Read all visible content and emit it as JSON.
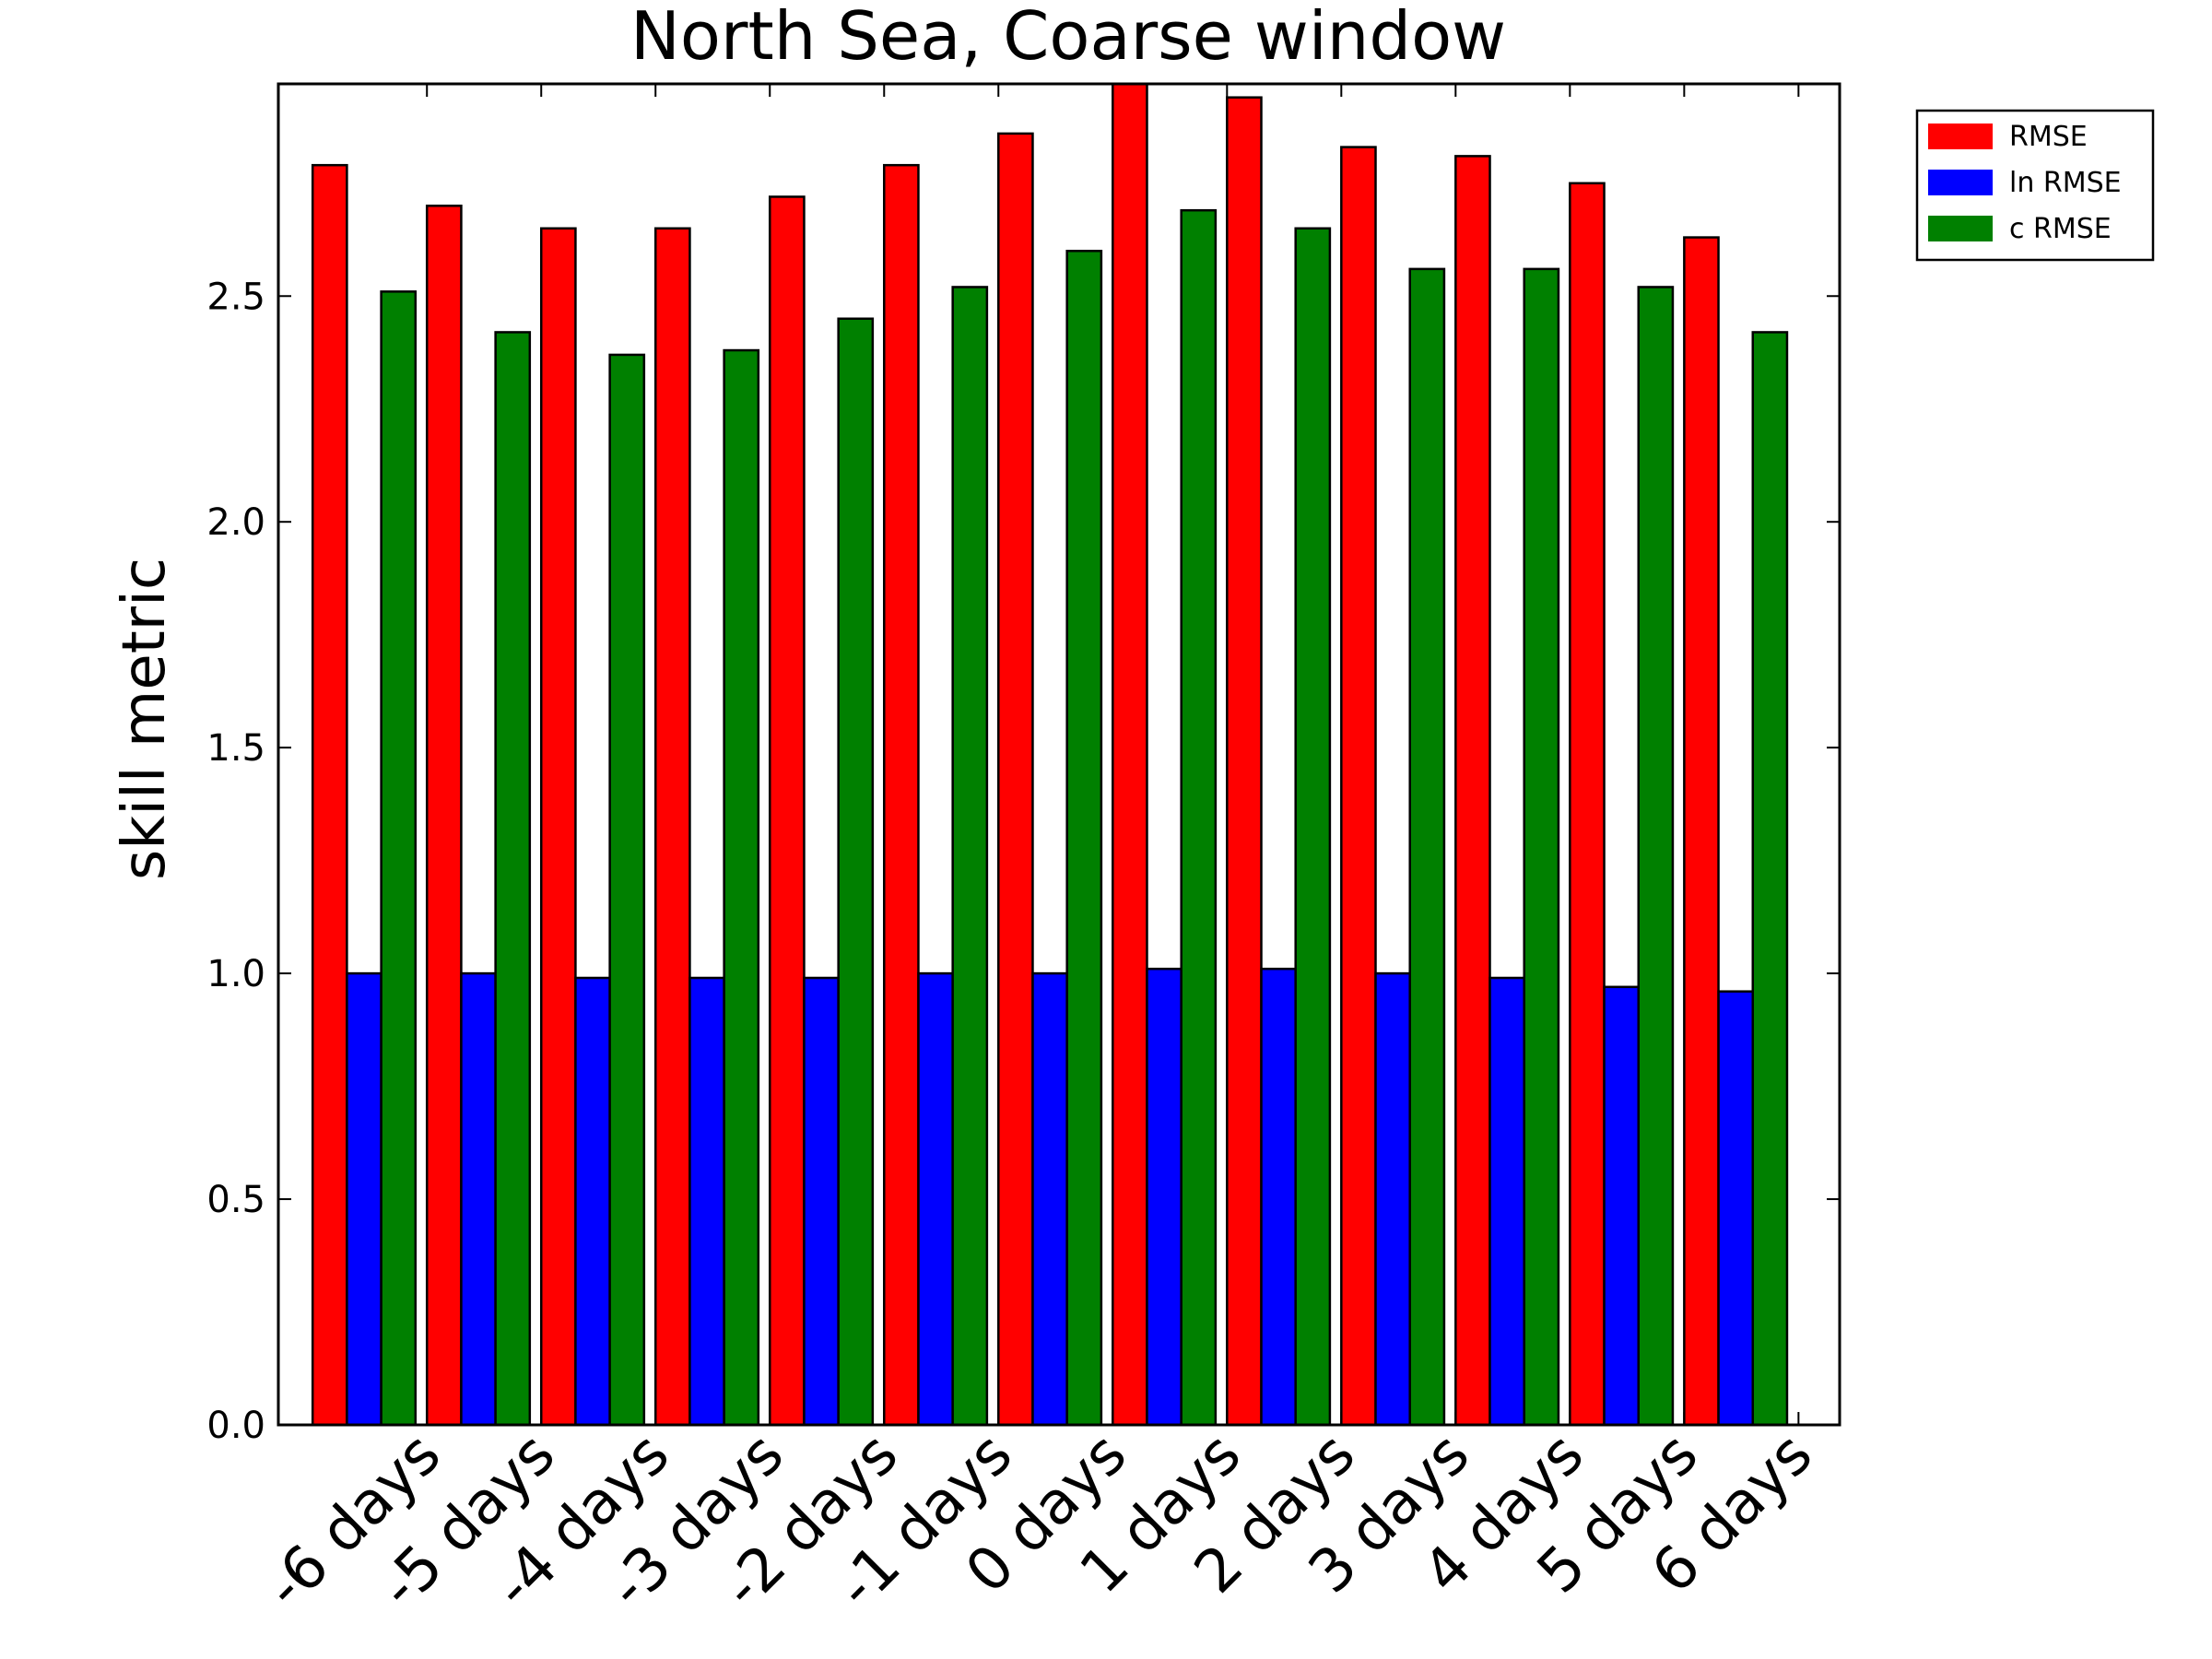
{
  "chart_data": {
    "type": "bar",
    "title": "North Sea, Coarse window",
    "xlabel": "",
    "ylabel": "skill metric",
    "ylim": [
      0.0,
      2.97
    ],
    "yticks": [
      "0.0",
      "0.5",
      "1.0",
      "1.5",
      "2.0",
      "2.5"
    ],
    "yticks_values": [
      0.0,
      0.5,
      1.0,
      1.5,
      2.0,
      2.5
    ],
    "categories": [
      "-6 days",
      "-5 days",
      "-4 days",
      "-3 days",
      "-2 days",
      "-1 days",
      "0 days",
      "1 days",
      "2 days",
      "3 days",
      "4 days",
      "5 days",
      "6 days"
    ],
    "series": [
      {
        "name": "RMSE",
        "color": "#ff0000",
        "values": [
          2.79,
          2.7,
          2.65,
          2.65,
          2.72,
          2.79,
          2.86,
          2.97,
          2.94,
          2.83,
          2.81,
          2.75,
          2.63
        ]
      },
      {
        "name": "ln RMSE",
        "color": "#0000ff",
        "values": [
          1.0,
          1.0,
          0.99,
          0.99,
          0.99,
          1.0,
          1.0,
          1.01,
          1.01,
          1.0,
          0.99,
          0.97,
          0.96
        ]
      },
      {
        "name": "c RMSE",
        "color": "#008000",
        "values": [
          2.51,
          2.42,
          2.37,
          2.38,
          2.45,
          2.52,
          2.6,
          2.69,
          2.65,
          2.56,
          2.56,
          2.52,
          2.42
        ]
      }
    ],
    "grid": false,
    "legend_position": "outside-top-right"
  }
}
